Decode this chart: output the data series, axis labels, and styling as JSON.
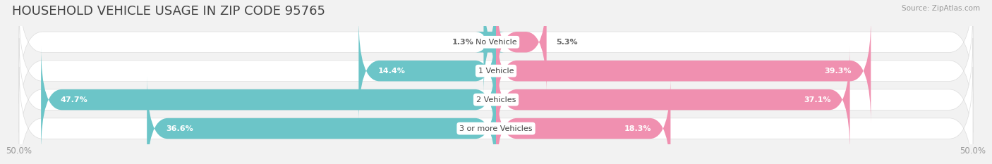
{
  "title": "HOUSEHOLD VEHICLE USAGE IN ZIP CODE 95765",
  "source": "Source: ZipAtlas.com",
  "categories": [
    "No Vehicle",
    "1 Vehicle",
    "2 Vehicles",
    "3 or more Vehicles"
  ],
  "owner_values": [
    1.3,
    14.4,
    47.7,
    36.6
  ],
  "renter_values": [
    5.3,
    39.3,
    37.1,
    18.3
  ],
  "owner_color": "#6cc5c8",
  "renter_color": "#f090b0",
  "background_color": "#f2f2f2",
  "bar_bg_color": "#ffffff",
  "bar_bg_edge": "#e0e0e0",
  "title_fontsize": 13,
  "label_fontsize": 8,
  "tick_fontsize": 8.5,
  "cat_fontsize": 8,
  "source_fontsize": 7.5
}
